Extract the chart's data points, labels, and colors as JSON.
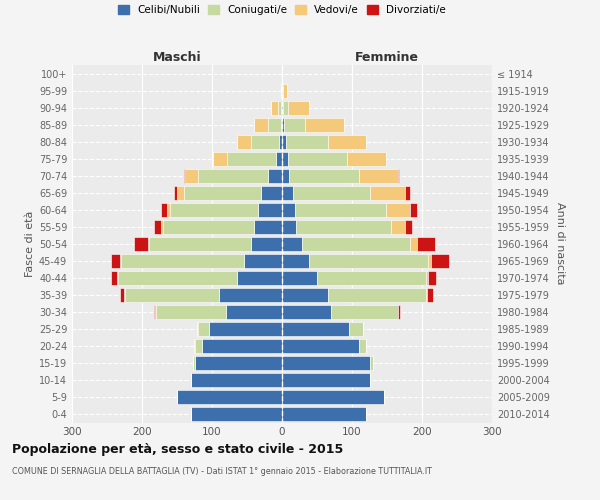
{
  "age_groups": [
    "0-4",
    "5-9",
    "10-14",
    "15-19",
    "20-24",
    "25-29",
    "30-34",
    "35-39",
    "40-44",
    "45-49",
    "50-54",
    "55-59",
    "60-64",
    "65-69",
    "70-74",
    "75-79",
    "80-84",
    "85-89",
    "90-94",
    "95-99",
    "100+"
  ],
  "birth_years": [
    "2010-2014",
    "2005-2009",
    "2000-2004",
    "1995-1999",
    "1990-1994",
    "1985-1989",
    "1980-1984",
    "1975-1979",
    "1970-1974",
    "1965-1969",
    "1960-1964",
    "1955-1959",
    "1950-1954",
    "1945-1949",
    "1940-1944",
    "1935-1939",
    "1930-1934",
    "1925-1929",
    "1920-1924",
    "1915-1919",
    "≤ 1914"
  ],
  "colors": {
    "celibi": "#3d6fad",
    "coniugati": "#c5d9a0",
    "vedovi": "#f5c97a",
    "divorziati": "#cc1414"
  },
  "maschi": {
    "celibi": [
      130,
      150,
      130,
      125,
      115,
      105,
      80,
      90,
      65,
      55,
      45,
      40,
      35,
      30,
      20,
      8,
      5,
      2,
      1,
      0,
      0
    ],
    "coniugati": [
      0,
      0,
      0,
      2,
      10,
      15,
      100,
      135,
      170,
      175,
      145,
      130,
      125,
      110,
      100,
      70,
      40,
      18,
      5,
      1,
      0
    ],
    "vedovi": [
      0,
      0,
      0,
      0,
      1,
      1,
      1,
      1,
      1,
      2,
      2,
      3,
      5,
      10,
      18,
      20,
      20,
      20,
      10,
      1,
      0
    ],
    "divorziati": [
      0,
      0,
      0,
      0,
      0,
      0,
      2,
      5,
      8,
      12,
      20,
      10,
      8,
      5,
      2,
      0,
      0,
      0,
      0,
      0,
      0
    ]
  },
  "femmine": {
    "celibi": [
      120,
      145,
      125,
      125,
      110,
      95,
      70,
      65,
      50,
      38,
      28,
      20,
      18,
      15,
      10,
      8,
      5,
      3,
      1,
      0,
      0
    ],
    "coniugati": [
      0,
      0,
      0,
      5,
      10,
      20,
      95,
      140,
      155,
      170,
      155,
      135,
      130,
      110,
      100,
      85,
      60,
      30,
      8,
      2,
      0
    ],
    "vedovi": [
      0,
      0,
      0,
      0,
      0,
      1,
      1,
      2,
      3,
      5,
      10,
      20,
      35,
      50,
      55,
      55,
      55,
      55,
      30,
      5,
      0
    ],
    "divorziati": [
      0,
      0,
      0,
      0,
      0,
      0,
      2,
      8,
      12,
      25,
      25,
      10,
      10,
      8,
      2,
      0,
      0,
      0,
      0,
      0,
      0
    ]
  },
  "xlim": 300,
  "title": "Popolazione per età, sesso e stato civile - 2015",
  "subtitle": "COMUNE DI SERNAGLIA DELLA BATTAGLIA (TV) - Dati ISTAT 1° gennaio 2015 - Elaborazione TUTTITALIA.IT",
  "xlabel_left": "Maschi",
  "xlabel_right": "Femmine",
  "ylabel_left": "Fasce di età",
  "ylabel_right": "Anni di nascita",
  "legend_labels": [
    "Celibi/Nubili",
    "Coniugati/e",
    "Vedovi/e",
    "Divorziati/e"
  ],
  "xtick_vals": [
    -300,
    -200,
    -100,
    0,
    100,
    200,
    300
  ]
}
